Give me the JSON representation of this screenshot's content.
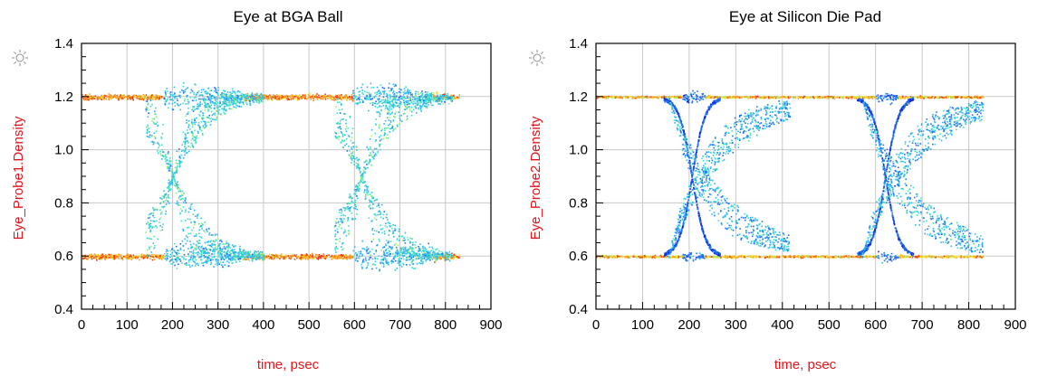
{
  "colors": {
    "axis_label": "#e8141b",
    "grid": "#c8c8c8",
    "frame": "#000000",
    "density_scale": [
      "#1020d8",
      "#1f6ff0",
      "#2fb6f2",
      "#3ee0c8",
      "#9ef06a",
      "#f0e830",
      "#f7a020",
      "#ea3c14"
    ]
  },
  "icons": {
    "marker_icon": "sun-icon"
  },
  "chart_data": [
    {
      "type": "heatmap",
      "title": "Eye at BGA Ball",
      "xlabel": "time, psec",
      "ylabel": "Eye_Probe1.Density",
      "xlim": [
        0,
        900
      ],
      "ylim": [
        0.4,
        1.4
      ],
      "xticks": [
        "0",
        "100",
        "200",
        "300",
        "400",
        "500",
        "600",
        "700",
        "800",
        "900"
      ],
      "yticks": [
        "0.4",
        "0.6",
        "0.8",
        "1.0",
        "1.2",
        "1.4"
      ],
      "grid": true,
      "unit_interval_ps": 415,
      "data_x_extent": [
        0,
        830
      ],
      "levels": {
        "high": 1.2,
        "low": 0.6,
        "crossing": 0.9
      },
      "transition_centers_ps": [
        160,
        575
      ],
      "overshoot_peak": 1.32,
      "undershoot_min": 0.48
    },
    {
      "type": "heatmap",
      "title": "Eye at Silicon Die Pad",
      "xlabel": "time, psec",
      "ylabel": "Eye_Probe2.Density",
      "xlim": [
        0,
        900
      ],
      "ylim": [
        0.4,
        1.4
      ],
      "xticks": [
        "0",
        "100",
        "200",
        "300",
        "400",
        "500",
        "600",
        "700",
        "800",
        "900"
      ],
      "yticks": [
        "0.4",
        "0.6",
        "0.8",
        "1.0",
        "1.2",
        "1.4"
      ],
      "grid": true,
      "unit_interval_ps": 415,
      "data_x_extent": [
        0,
        830
      ],
      "levels": {
        "high": 1.2,
        "low": 0.6,
        "crossing": 0.9
      },
      "crossing_points_ps": [
        205,
        620
      ],
      "overshoot_peak": 1.25,
      "undershoot_min": 0.55
    }
  ]
}
